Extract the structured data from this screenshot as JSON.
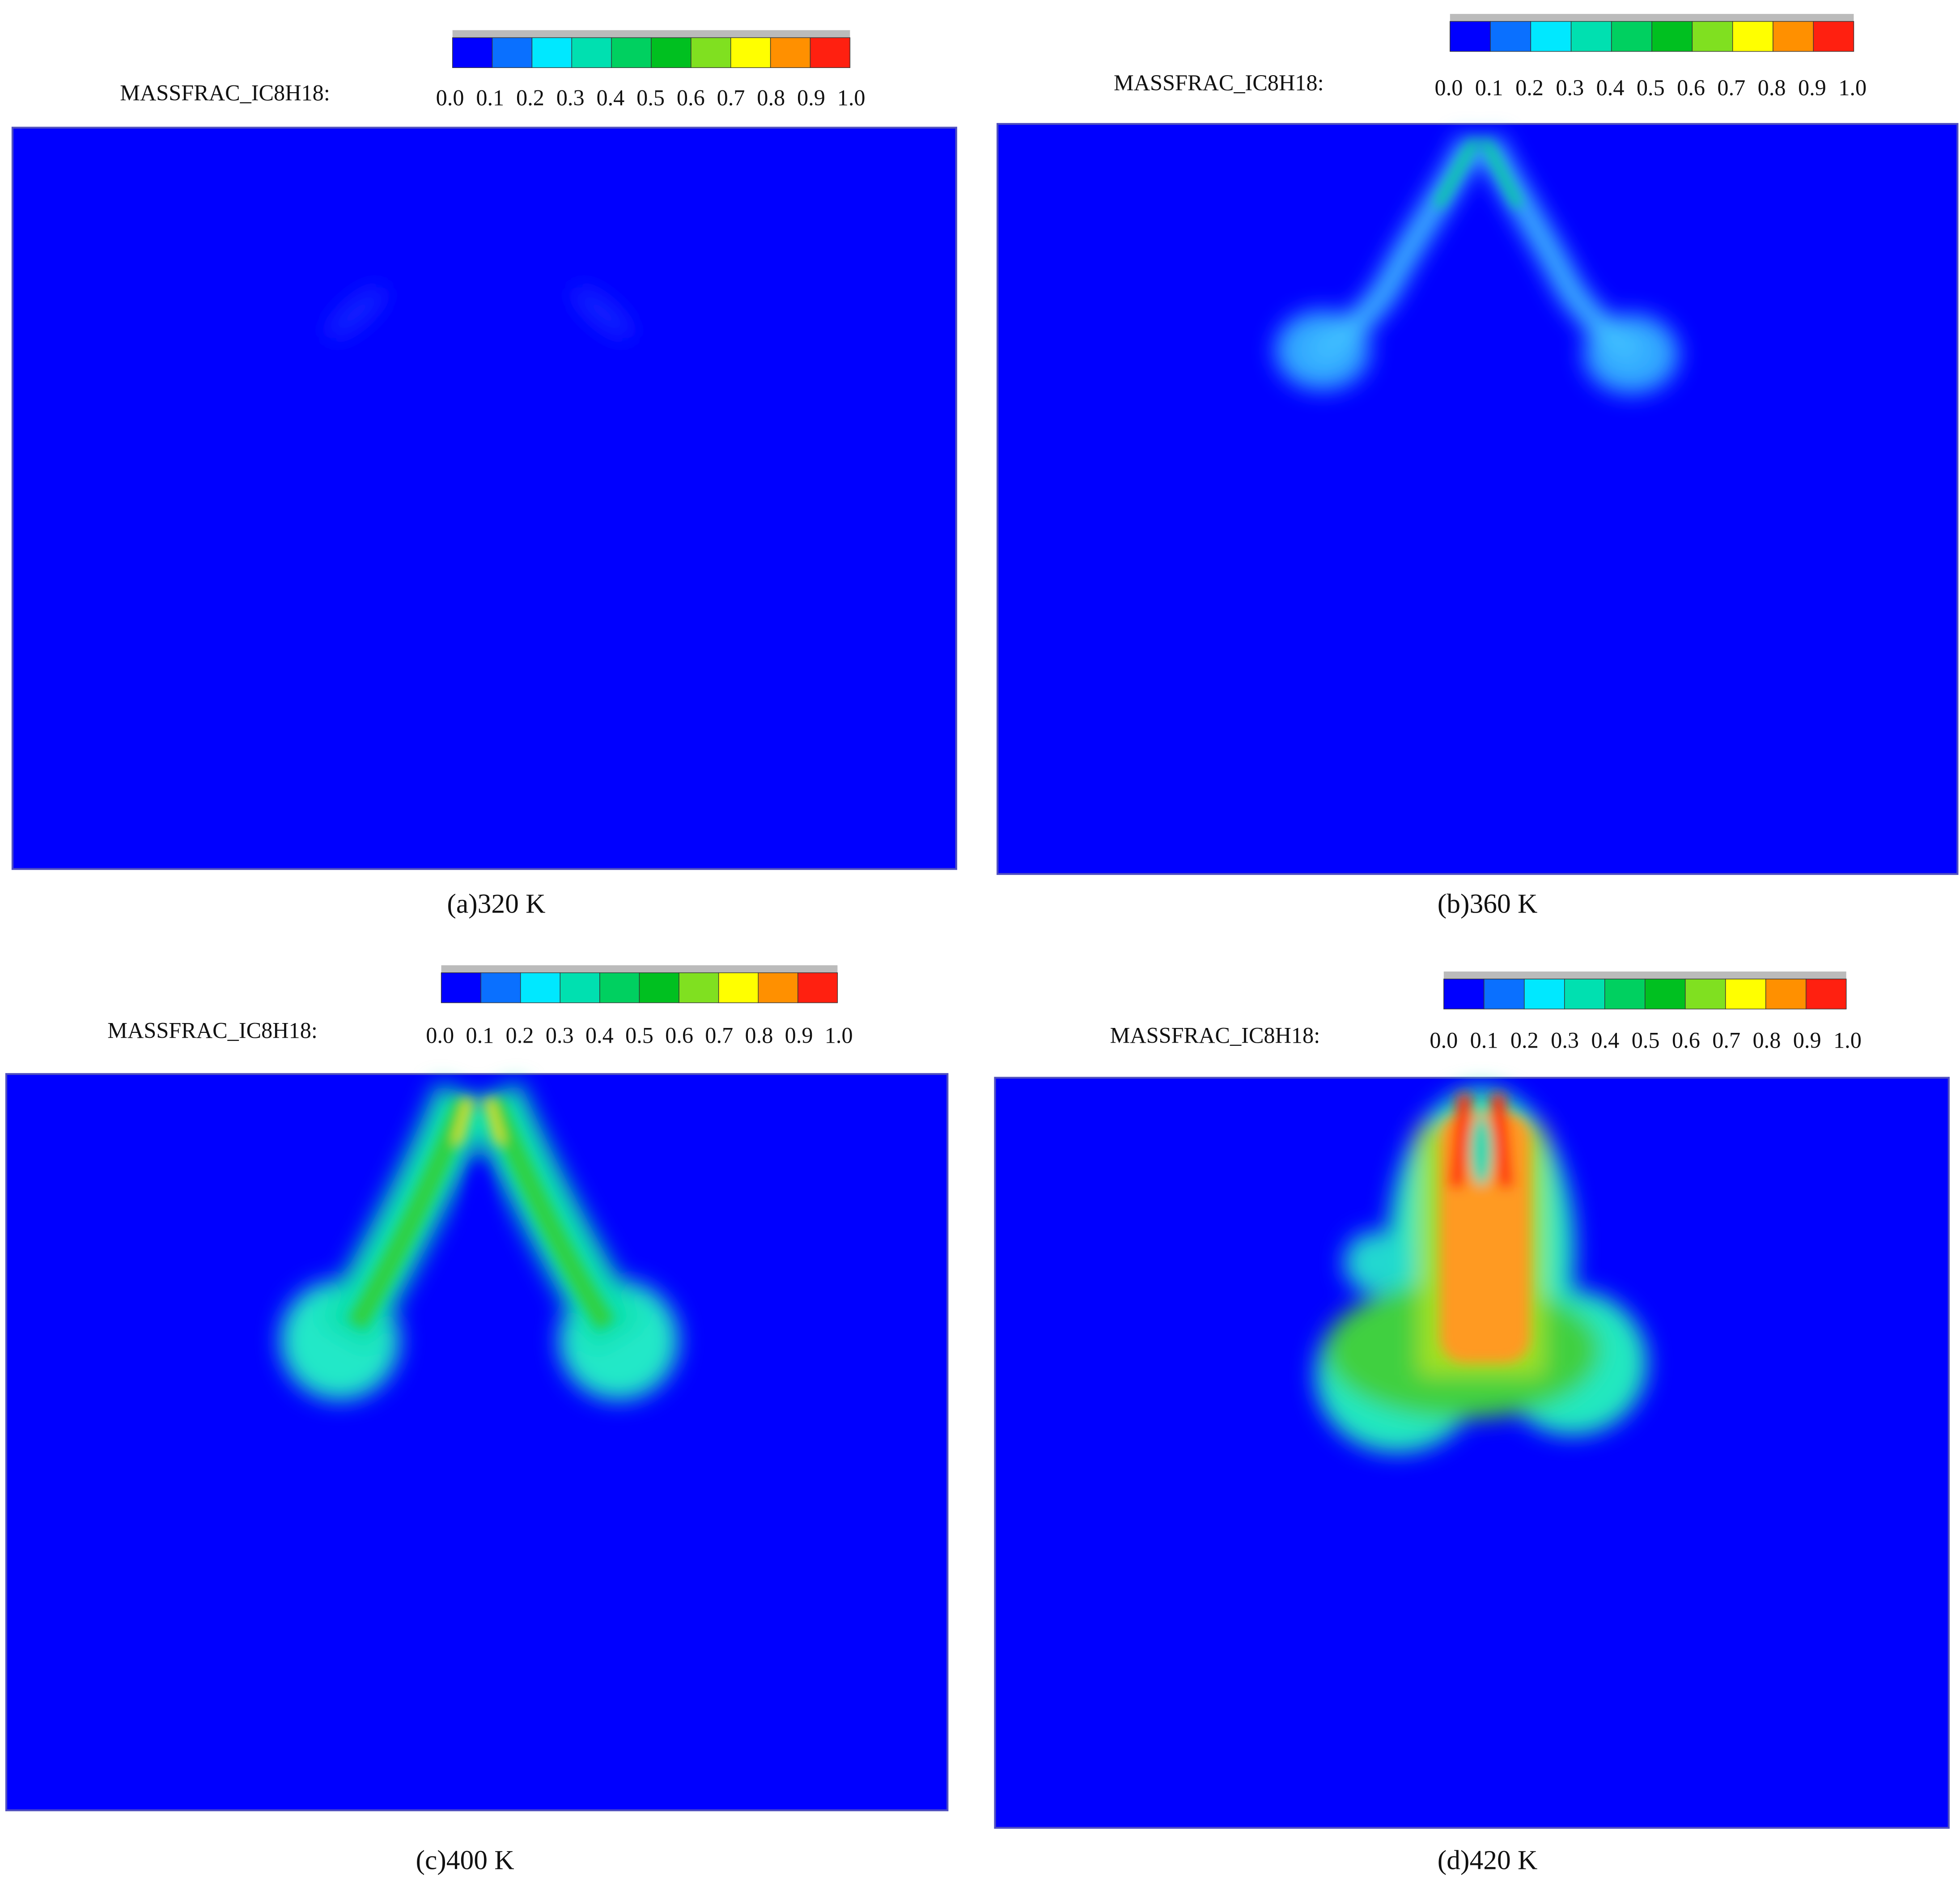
{
  "panels": [
    {
      "variable_label": "MASSFRAC_IC8H18:",
      "colorbar_ticks": [
        "0.0",
        "0.1",
        "0.2",
        "0.3",
        "0.4",
        "0.5",
        "0.6",
        "0.7",
        "0.8",
        "0.9",
        "1.0"
      ],
      "caption": "(a)320 K"
    },
    {
      "variable_label": "MASSFRAC_IC8H18:",
      "colorbar_ticks": [
        "0.0",
        "0.1",
        "0.2",
        "0.3",
        "0.4",
        "0.5",
        "0.6",
        "0.7",
        "0.8",
        "0.9",
        "1.0"
      ],
      "caption": "(b)360 K"
    },
    {
      "variable_label": "MASSFRAC_IC8H18:",
      "colorbar_ticks": [
        "0.0",
        "0.1",
        "0.2",
        "0.3",
        "0.4",
        "0.5",
        "0.6",
        "0.7",
        "0.8",
        "0.9",
        "1.0"
      ],
      "caption": "(c)400 K"
    },
    {
      "variable_label": "MASSFRAC_IC8H18:",
      "colorbar_ticks": [
        "0.0",
        "0.1",
        "0.2",
        "0.3",
        "0.4",
        "0.5",
        "0.6",
        "0.7",
        "0.8",
        "0.9",
        "1.0"
      ],
      "caption": "(d)420 K"
    }
  ]
}
